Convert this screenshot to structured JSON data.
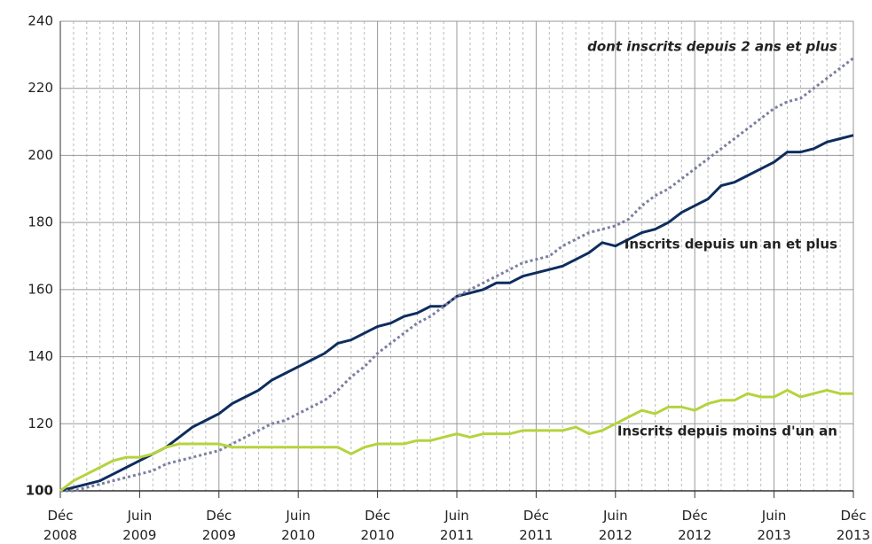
{
  "chart_data": {
    "type": "line",
    "categories": [
      "Déc 2008",
      null,
      null,
      null,
      null,
      null,
      "Juin 2009",
      null,
      null,
      null,
      null,
      null,
      "Déc 2009",
      null,
      null,
      null,
      null,
      null,
      "Juin 2010",
      null,
      null,
      null,
      null,
      null,
      "Déc 2010",
      null,
      null,
      null,
      null,
      null,
      "Juin 2011",
      null,
      null,
      null,
      null,
      null,
      "Déc 2011",
      null,
      null,
      null,
      null,
      null,
      "Juin 2012",
      null,
      null,
      null,
      null,
      null,
      "Déc 2012",
      null,
      null,
      null,
      null,
      null,
      "Juin 2013",
      null,
      null,
      null,
      null,
      null,
      "Déc 2013"
    ],
    "series": [
      {
        "name": "Inscrits depuis un an et plus",
        "color": "#0e2d5e",
        "dash": "solid",
        "values": [
          100,
          101,
          102,
          103,
          105,
          107,
          109,
          111,
          113,
          116,
          119,
          121,
          123,
          126,
          128,
          130,
          133,
          135,
          137,
          139,
          141,
          144,
          145,
          147,
          149,
          150,
          152,
          153,
          155,
          155,
          158,
          159,
          160,
          162,
          162,
          164,
          165,
          166,
          167,
          169,
          171,
          174,
          173,
          175,
          177,
          178,
          180,
          183,
          185,
          187,
          191,
          192,
          194,
          196,
          198,
          201,
          201,
          202,
          204,
          205,
          206
        ]
      },
      {
        "name": "dont inscrits depuis 2 ans et plus",
        "color": "#7b7fa0",
        "dash": "dotted",
        "values": [
          100,
          100,
          101,
          102,
          103,
          104,
          105,
          106,
          108,
          109,
          110,
          111,
          112,
          114,
          116,
          118,
          120,
          121,
          123,
          125,
          127,
          130,
          134,
          137,
          141,
          144,
          147,
          150,
          152,
          155,
          158,
          160,
          162,
          164,
          166,
          168,
          169,
          170,
          173,
          175,
          177,
          178,
          179,
          181,
          185,
          188,
          190,
          193,
          196,
          199,
          202,
          205,
          208,
          211,
          214,
          216,
          217,
          220,
          223,
          226,
          229
        ]
      },
      {
        "name": "Inscrits depuis moins d'un an",
        "color": "#b5d33d",
        "dash": "solid",
        "values": [
          100,
          103,
          105,
          107,
          109,
          110,
          110,
          111,
          113,
          114,
          114,
          114,
          114,
          113,
          113,
          113,
          113,
          113,
          113,
          113,
          113,
          113,
          111,
          113,
          114,
          114,
          114,
          115,
          115,
          116,
          117,
          116,
          117,
          117,
          117,
          118,
          118,
          118,
          118,
          119,
          117,
          118,
          120,
          122,
          124,
          123,
          125,
          125,
          124,
          126,
          127,
          127,
          129,
          128,
          128,
          130,
          128,
          129,
          130,
          129,
          129
        ]
      }
    ],
    "ylim": [
      100,
      240
    ],
    "yticks": [
      100,
      120,
      140,
      160,
      180,
      200,
      220,
      240
    ],
    "grid": true
  }
}
